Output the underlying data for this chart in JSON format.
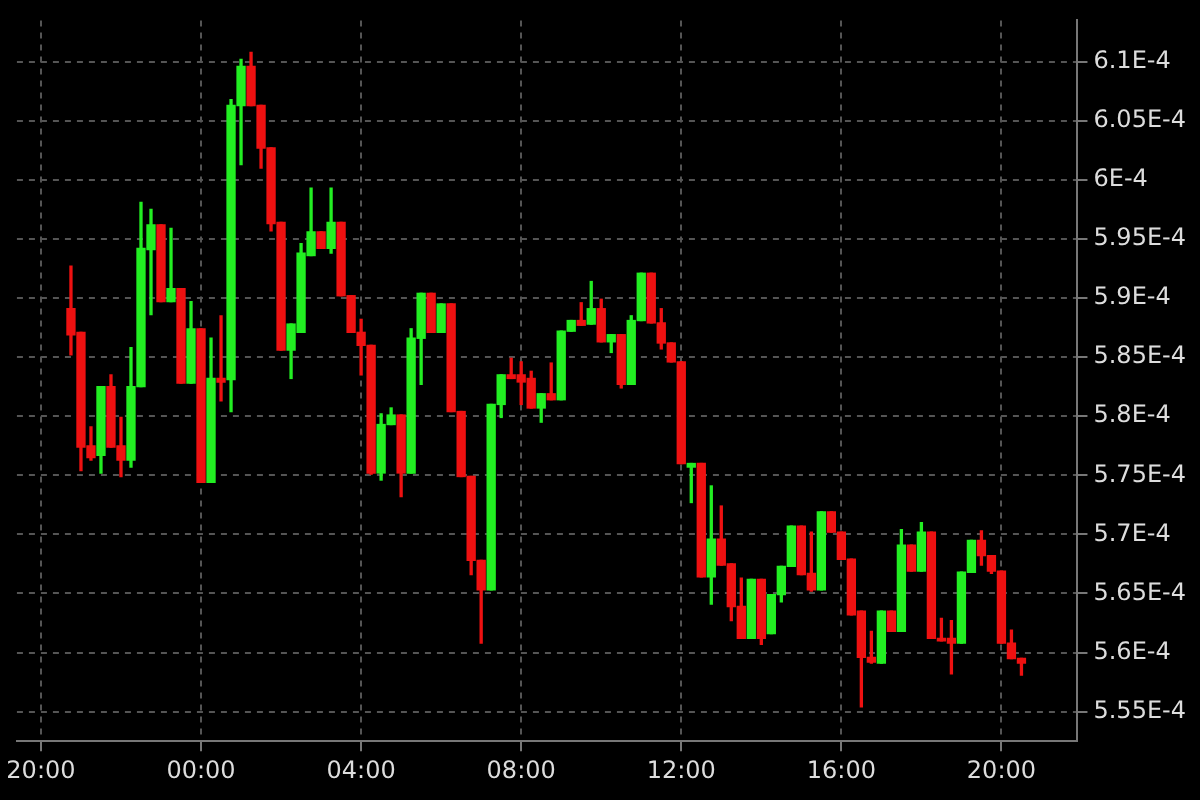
{
  "chart_data": {
    "type": "candlestick",
    "grid": true,
    "legend": false,
    "xlim": [
      "--01-01T19:24",
      "--01-02T21:54"
    ],
    "xticks": [
      {
        "value": "--01-01T20:00",
        "label": "20:00"
      },
      {
        "value": "--01-02T00:00",
        "label": "00:00"
      },
      {
        "value": "--01-02T04:00",
        "label": "04:00"
      },
      {
        "value": "--01-02T08:00",
        "label": "08:00"
      },
      {
        "value": "--01-02T12:00",
        "label": "12:00"
      },
      {
        "value": "--01-02T16:00",
        "label": "16:00"
      },
      {
        "value": "--01-02T20:00",
        "label": "20:00"
      }
    ],
    "ylim": [
      0.0005525,
      0.0006135
    ],
    "yticks": [
      {
        "value": 0.000555,
        "label": "5.55E-4"
      },
      {
        "value": 0.00056,
        "label": "5.6E-4"
      },
      {
        "value": 0.000565,
        "label": "5.65E-4"
      },
      {
        "value": 0.00057,
        "label": "5.7E-4"
      },
      {
        "value": 0.000575,
        "label": "5.75E-4"
      },
      {
        "value": 0.00058,
        "label": "5.8E-4"
      },
      {
        "value": 0.000585,
        "label": "5.85E-4"
      },
      {
        "value": 0.00059,
        "label": "5.9E-4"
      },
      {
        "value": 0.000595,
        "label": "5.95E-4"
      },
      {
        "value": 0.0006,
        "label": "6E-4"
      },
      {
        "value": 0.000605,
        "label": "6.05E-4"
      },
      {
        "value": 0.00061,
        "label": "6.1E-4"
      }
    ],
    "x": [
      "--01-01T20:45",
      "--01-01T21:00",
      "--01-01T21:15",
      "--01-01T21:30",
      "--01-01T21:45",
      "--01-01T22:00",
      "--01-01T22:15",
      "--01-01T22:30",
      "--01-01T22:45",
      "--01-01T23:00",
      "--01-01T23:15",
      "--01-01T23:30",
      "--01-01T23:45",
      "--01-02T00:00",
      "--01-02T00:15",
      "--01-02T00:30",
      "--01-02T00:45",
      "--01-02T01:00",
      "--01-02T01:15",
      "--01-02T01:30",
      "--01-02T01:45",
      "--01-02T02:00",
      "--01-02T02:15",
      "--01-02T02:30",
      "--01-02T02:45",
      "--01-02T03:00",
      "--01-02T03:15",
      "--01-02T03:30",
      "--01-02T03:45",
      "--01-02T04:00",
      "--01-02T04:15",
      "--01-02T04:30",
      "--01-02T04:45",
      "--01-02T05:00",
      "--01-02T05:15",
      "--01-02T05:30",
      "--01-02T05:45",
      "--01-02T06:00",
      "--01-02T06:15",
      "--01-02T06:30",
      "--01-02T06:45",
      "--01-02T07:00",
      "--01-02T07:15",
      "--01-02T07:30",
      "--01-02T07:45",
      "--01-02T08:00",
      "--01-02T08:15",
      "--01-02T08:30",
      "--01-02T08:45",
      "--01-02T09:00",
      "--01-02T09:15",
      "--01-02T09:30",
      "--01-02T09:45",
      "--01-02T10:00",
      "--01-02T10:15",
      "--01-02T10:30",
      "--01-02T10:45",
      "--01-02T11:00",
      "--01-02T11:15",
      "--01-02T11:30",
      "--01-02T11:45",
      "--01-02T12:00",
      "--01-02T12:15",
      "--01-02T12:30",
      "--01-02T12:45",
      "--01-02T13:00",
      "--01-02T13:15",
      "--01-02T13:30",
      "--01-02T13:45",
      "--01-02T14:00",
      "--01-02T14:15",
      "--01-02T14:30",
      "--01-02T14:45",
      "--01-02T15:00",
      "--01-02T15:15",
      "--01-02T15:30",
      "--01-02T15:45",
      "--01-02T16:00",
      "--01-02T16:15",
      "--01-02T16:30",
      "--01-02T16:45",
      "--01-02T17:00",
      "--01-02T17:15",
      "--01-02T17:30",
      "--01-02T17:45",
      "--01-02T18:00",
      "--01-02T18:15",
      "--01-02T18:30",
      "--01-02T18:45",
      "--01-02T19:00",
      "--01-02T19:15",
      "--01-02T19:30",
      "--01-02T19:45",
      "--01-02T20:00",
      "--01-02T20:15",
      "--01-02T20:30"
    ],
    "ohlc": [
      [
        0.0005891,
        0.0005927,
        0.0005852,
        0.0005869
      ],
      [
        0.0005871,
        0.0005871,
        0.0005754,
        0.0005774
      ],
      [
        0.0005775,
        0.0005791,
        0.0005763,
        0.0005765
      ],
      [
        0.0005767,
        0.0005825,
        0.0005752,
        0.0005825
      ],
      [
        0.0005825,
        0.0005835,
        0.0005774,
        0.0005774
      ],
      [
        0.0005775,
        0.0005799,
        0.0005749,
        0.0005763
      ],
      [
        0.0005763,
        0.0005858,
        0.0005757,
        0.0005825
      ],
      [
        0.0005825,
        0.0005981,
        0.0005825,
        0.0005942
      ],
      [
        0.0005941,
        0.0005975,
        0.0005886,
        0.0005962
      ],
      [
        0.0005962,
        0.0005962,
        0.0005897,
        0.0005897
      ],
      [
        0.0005897,
        0.0005959,
        0.0005897,
        0.0005908
      ],
      [
        0.0005908,
        0.0005908,
        0.0005828,
        0.0005828
      ],
      [
        0.0005828,
        0.0005897,
        0.0005828,
        0.0005874
      ],
      [
        0.0005874,
        0.0005874,
        0.0005744,
        0.0005744
      ],
      [
        0.0005744,
        0.0005866,
        0.0005744,
        0.0005832
      ],
      [
        0.0005832,
        0.0005885,
        0.0005813,
        0.0005829
      ],
      [
        0.0005831,
        0.0006068,
        0.0005804,
        0.0006063
      ],
      [
        0.0006063,
        0.0006102,
        0.0006013,
        0.0006096
      ],
      [
        0.0006096,
        0.0006108,
        0.0006063,
        0.0006063
      ],
      [
        0.0006063,
        0.0006063,
        0.000601,
        0.0006027
      ],
      [
        0.0006027,
        0.0006027,
        0.0005957,
        0.0005963
      ],
      [
        0.0005964,
        0.0005964,
        0.0005856,
        0.0005856
      ],
      [
        0.0005856,
        0.0005878,
        0.0005832,
        0.0005878
      ],
      [
        0.0005871,
        0.0005946,
        0.0005871,
        0.0005938
      ],
      [
        0.0005936,
        0.0005993,
        0.0005936,
        0.0005956
      ],
      [
        0.0005956,
        0.0005956,
        0.0005942,
        0.0005942
      ],
      [
        0.0005942,
        0.0005993,
        0.0005938,
        0.0005964
      ],
      [
        0.0005964,
        0.0005964,
        0.0005902,
        0.0005902
      ],
      [
        0.0005902,
        0.0005902,
        0.0005871,
        0.0005871
      ],
      [
        0.0005871,
        0.0005882,
        0.0005835,
        0.000586
      ],
      [
        0.000586,
        0.000586,
        0.0005751,
        0.0005752
      ],
      [
        0.0005752,
        0.0005802,
        0.0005746,
        0.0005793
      ],
      [
        0.0005793,
        0.0005807,
        0.0005793,
        0.0005801
      ],
      [
        0.0005801,
        0.0005801,
        0.0005732,
        0.0005752
      ],
      [
        0.0005752,
        0.0005874,
        0.0005752,
        0.0005866
      ],
      [
        0.0005866,
        0.0005904,
        0.0005827,
        0.0005904
      ],
      [
        0.0005904,
        0.0005904,
        0.0005871,
        0.0005871
      ],
      [
        0.0005871,
        0.0005895,
        0.0005871,
        0.0005895
      ],
      [
        0.0005895,
        0.0005895,
        0.0005804,
        0.0005804
      ],
      [
        0.0005804,
        0.0005804,
        0.0005749,
        0.0005749
      ],
      [
        0.0005749,
        0.0005749,
        0.0005666,
        0.0005678
      ],
      [
        0.0005678,
        0.0005678,
        0.0005608,
        0.0005653
      ],
      [
        0.0005653,
        0.000581,
        0.0005653,
        0.000581
      ],
      [
        0.000581,
        0.0005835,
        0.0005799,
        0.0005835
      ],
      [
        0.0005835,
        0.0005849,
        0.0005832,
        0.0005832
      ],
      [
        0.0005835,
        0.0005846,
        0.000581,
        0.0005829
      ],
      [
        0.0005832,
        0.0005838,
        0.0005807,
        0.0005807
      ],
      [
        0.0005807,
        0.0005819,
        0.0005795,
        0.0005819
      ],
      [
        0.0005819,
        0.0005845,
        0.0005814,
        0.0005814
      ],
      [
        0.0005814,
        0.0005872,
        0.0005814,
        0.0005872
      ],
      [
        0.0005872,
        0.0005881,
        0.0005872,
        0.0005881
      ],
      [
        0.0005881,
        0.0005896,
        0.0005877,
        0.0005877
      ],
      [
        0.0005878,
        0.0005914,
        0.0005878,
        0.0005891
      ],
      [
        0.0005891,
        0.0005899,
        0.0005863,
        0.0005863
      ],
      [
        0.0005863,
        0.0005869,
        0.0005854,
        0.0005869
      ],
      [
        0.0005869,
        0.0005869,
        0.0005824,
        0.0005827
      ],
      [
        0.0005827,
        0.0005885,
        0.0005827,
        0.0005881
      ],
      [
        0.0005881,
        0.0005921,
        0.0005881,
        0.0005921
      ],
      [
        0.0005921,
        0.0005921,
        0.0005879,
        0.0005879
      ],
      [
        0.0005879,
        0.0005891,
        0.0005857,
        0.0005862
      ],
      [
        0.0005862,
        0.0005862,
        0.0005846,
        0.0005846
      ],
      [
        0.0005846,
        0.0005846,
        0.000576,
        0.000576
      ],
      [
        0.0005757,
        0.000576,
        0.0005727,
        0.000576
      ],
      [
        0.000576,
        0.000576,
        0.0005664,
        0.0005664
      ],
      [
        0.0005664,
        0.0005741,
        0.0005641,
        0.0005696
      ],
      [
        0.0005696,
        0.0005724,
        0.0005674,
        0.0005674
      ],
      [
        0.0005675,
        0.0005675,
        0.0005627,
        0.0005639
      ],
      [
        0.0005639,
        0.0005663,
        0.0005612,
        0.0005612
      ],
      [
        0.0005612,
        0.0005662,
        0.0005612,
        0.0005662
      ],
      [
        0.0005662,
        0.0005662,
        0.0005607,
        0.0005612
      ],
      [
        0.0005616,
        0.0005649,
        0.0005616,
        0.0005649
      ],
      [
        0.0005649,
        0.0005673,
        0.0005643,
        0.0005673
      ],
      [
        0.0005673,
        0.0005707,
        0.0005673,
        0.0005707
      ],
      [
        0.0005707,
        0.0005707,
        0.0005666,
        0.0005666
      ],
      [
        0.0005667,
        0.0005702,
        0.0005652,
        0.0005653
      ],
      [
        0.0005653,
        0.0005719,
        0.0005653,
        0.0005719
      ],
      [
        0.0005719,
        0.0005719,
        0.0005702,
        0.0005702
      ],
      [
        0.0005702,
        0.0005702,
        0.0005679,
        0.0005679
      ],
      [
        0.0005679,
        0.0005679,
        0.0005632,
        0.0005632
      ],
      [
        0.0005635,
        0.0005635,
        0.0005554,
        0.0005596
      ],
      [
        0.0005596,
        0.0005618,
        0.0005591,
        0.0005592
      ],
      [
        0.0005591,
        0.0005635,
        0.0005591,
        0.0005635
      ],
      [
        0.0005635,
        0.0005635,
        0.0005618,
        0.0005618
      ],
      [
        0.0005618,
        0.0005704,
        0.0005618,
        0.0005691
      ],
      [
        0.0005691,
        0.0005691,
        0.0005669,
        0.0005669
      ],
      [
        0.0005669,
        0.000571,
        0.0005669,
        0.0005702
      ],
      [
        0.0005702,
        0.0005702,
        0.0005612,
        0.0005612
      ],
      [
        0.0005612,
        0.0005629,
        0.000561,
        0.000561
      ],
      [
        0.0005612,
        0.0005627,
        0.0005582,
        0.0005608
      ],
      [
        0.0005608,
        0.0005668,
        0.0005608,
        0.0005668
      ],
      [
        0.0005668,
        0.0005695,
        0.0005668,
        0.0005695
      ],
      [
        0.0005695,
        0.0005703,
        0.0005674,
        0.0005682
      ],
      [
        0.0005682,
        0.0005682,
        0.0005667,
        0.0005669
      ],
      [
        0.0005669,
        0.0005669,
        0.0005608,
        0.0005608
      ],
      [
        0.0005608,
        0.0005619,
        0.0005595,
        0.0005595
      ],
      [
        0.0005595,
        0.0005595,
        0.0005581,
        0.0005591
      ]
    ]
  }
}
